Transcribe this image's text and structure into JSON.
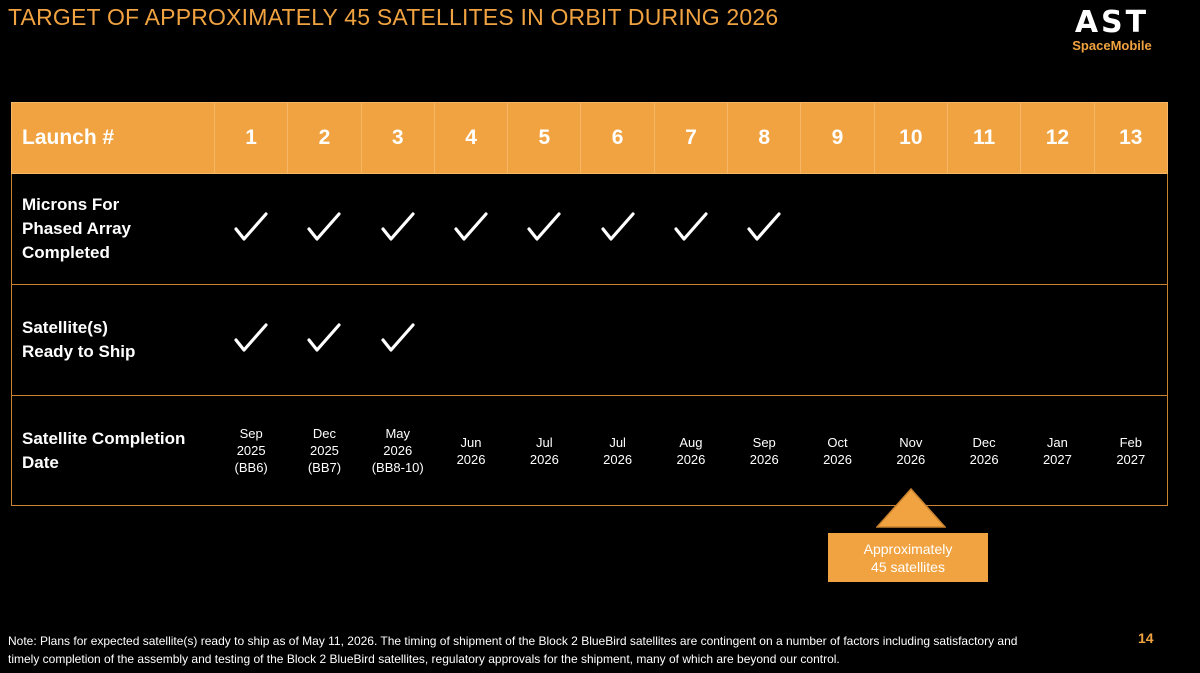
{
  "title": "TARGET OF APPROXIMATELY 45 SATELLITES IN ORBIT DURING 2026",
  "logo": {
    "main": "AST",
    "sub": "SpaceMobile"
  },
  "table": {
    "header_label": "Launch #",
    "launches": [
      "1",
      "2",
      "3",
      "4",
      "5",
      "6",
      "7",
      "8",
      "9",
      "10",
      "11",
      "12",
      "13"
    ],
    "rows": [
      {
        "label": "Microns For Phased Array Completed",
        "checks": [
          true,
          true,
          true,
          true,
          true,
          true,
          true,
          true,
          false,
          false,
          false,
          false,
          false
        ]
      },
      {
        "label": "Satellite(s) Ready to Ship",
        "checks": [
          true,
          true,
          true,
          false,
          false,
          false,
          false,
          false,
          false,
          false,
          false,
          false,
          false
        ]
      }
    ],
    "completion_label": "Satellite Completion Date",
    "completion_dates": [
      [
        "Sep",
        "2025",
        "(BB6)"
      ],
      [
        "Dec",
        "2025",
        "(BB7)"
      ],
      [
        "May",
        "2026",
        "(BB8-10)"
      ],
      [
        "Jun",
        "2026"
      ],
      [
        "Jul",
        "2026"
      ],
      [
        "Jul",
        "2026"
      ],
      [
        "Aug",
        "2026"
      ],
      [
        "Sep",
        "2026"
      ],
      [
        "Oct",
        "2026"
      ],
      [
        "Nov",
        "2026"
      ],
      [
        "Dec",
        "2026"
      ],
      [
        "Jan",
        "2027"
      ],
      [
        "Feb",
        "2027"
      ]
    ]
  },
  "callout": {
    "line1": "Approximately",
    "line2": "45 satellites"
  },
  "colors": {
    "accent": "#f0a340",
    "background": "#000000",
    "border": "#c9822e"
  },
  "note": "Note: Plans for expected satellite(s) ready to ship as of May 11, 2026. The timing of shipment of the Block 2 BlueBird satellites are contingent on a number of factors including satisfactory and timely completion of the assembly and testing of the Block 2 BlueBird satellites, regulatory approvals for the shipment, many of which are beyond our control.",
  "page_number": "14"
}
